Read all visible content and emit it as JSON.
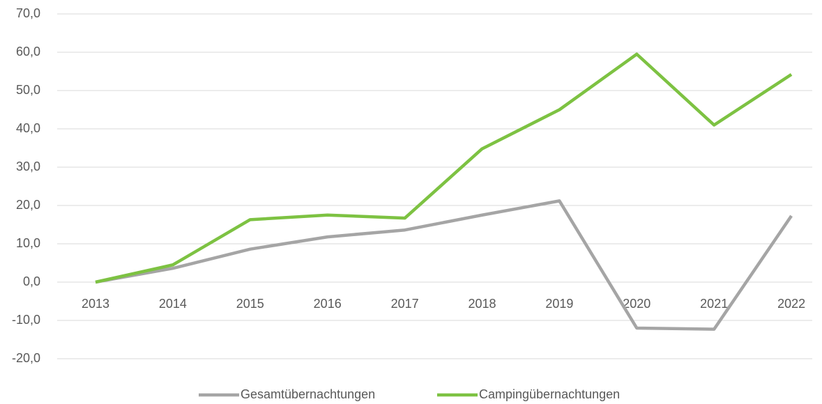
{
  "chart_data": {
    "type": "line",
    "categories": [
      "2013",
      "2014",
      "2015",
      "2016",
      "2017",
      "2018",
      "2019",
      "2020",
      "2021",
      "2022"
    ],
    "series": [
      {
        "name": "Gesamtübernachtungen",
        "color": "#a5a5a5",
        "values": [
          0,
          3.6,
          8.6,
          11.8,
          13.6,
          17.5,
          21.2,
          -12.0,
          -12.3,
          17.3
        ]
      },
      {
        "name": "Campingübernachtungen",
        "color": "#7dc242",
        "values": [
          0,
          4.5,
          16.3,
          17.5,
          16.7,
          34.8,
          45.0,
          59.5,
          41.0,
          54.2
        ]
      }
    ],
    "ylim": [
      -20,
      70
    ],
    "yticks": [
      {
        "value": -20,
        "label": "-20,0"
      },
      {
        "value": -10,
        "label": "-10,0"
      },
      {
        "value": 0,
        "label": "0,0"
      },
      {
        "value": 10,
        "label": "10,0"
      },
      {
        "value": 20,
        "label": "20,0"
      },
      {
        "value": 30,
        "label": "30,0"
      },
      {
        "value": 40,
        "label": "40,0"
      },
      {
        "value": 50,
        "label": "50,0"
      },
      {
        "value": 60,
        "label": "60,0"
      },
      {
        "value": 70,
        "label": "70,0"
      }
    ],
    "grid": true,
    "legend": "bottom"
  }
}
